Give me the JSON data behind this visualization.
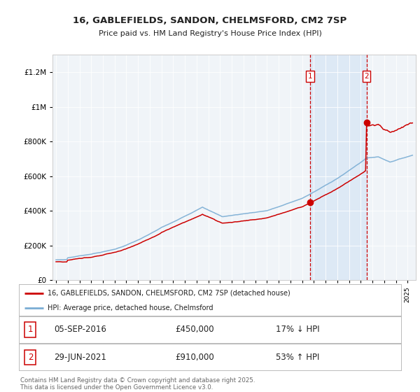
{
  "title_line1": "16, GABLEFIELDS, SANDON, CHELMSFORD, CM2 7SP",
  "title_line2": "Price paid vs. HM Land Registry's House Price Index (HPI)",
  "red_label": "16, GABLEFIELDS, SANDON, CHELMSFORD, CM2 7SP (detached house)",
  "blue_label": "HPI: Average price, detached house, Chelmsford",
  "sale1_date": "05-SEP-2016",
  "sale1_price": 450000,
  "sale1_hpi_text": "17% ↓ HPI",
  "sale2_date": "29-JUN-2021",
  "sale2_price": 910000,
  "sale2_hpi_text": "53% ↑ HPI",
  "footer": "Contains HM Land Registry data © Crown copyright and database right 2025.\nThis data is licensed under the Open Government Licence v3.0.",
  "background_color": "#ffffff",
  "plot_bg_color": "#f0f4f8",
  "shaded_region_color": "#dae8f5",
  "red_color": "#cc0000",
  "blue_color": "#7aadd4",
  "sale1_x": 2016.68,
  "sale2_x": 2021.49,
  "ylim_max": 1300000,
  "ylim_min": 0,
  "grid_color": "#ffffff",
  "spine_color": "#cccccc"
}
